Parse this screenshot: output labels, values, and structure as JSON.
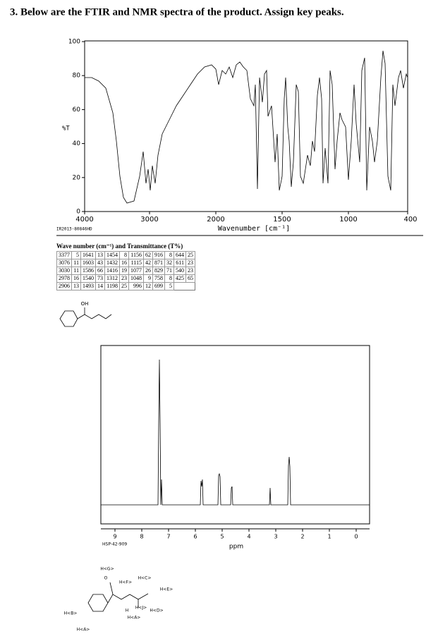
{
  "title": "3. Below are the FTIR and NMR spectra of the product.  Assign key peaks.",
  "ir": {
    "yticks": [
      "100",
      "80",
      "60",
      "40",
      "20",
      "0"
    ],
    "y_label": "%T",
    "xticks": [
      "4000",
      "3000",
      "2000",
      "1500",
      "1000",
      "400"
    ],
    "x_label": "Wavenumber [cm⁻¹]",
    "code": "IR2013-80846HD"
  },
  "table": {
    "caption": "Wave number (cm⁻¹) and Transmittance (T%)",
    "rows": [
      [
        "3377",
        "5",
        "1641",
        "13",
        "1454",
        "8",
        "1156",
        "62",
        "916",
        "8",
        "644",
        "25"
      ],
      [
        "3076",
        "11",
        "1603",
        "43",
        "1432",
        "16",
        "1115",
        "42",
        "871",
        "32",
        "611",
        "23"
      ],
      [
        "3030",
        "11",
        "1586",
        "66",
        "1416",
        "19",
        "1077",
        "26",
        "829",
        "71",
        "540",
        "23"
      ],
      [
        "2978",
        "16",
        "1540",
        "73",
        "1312",
        "23",
        "1048",
        "9",
        "758",
        "8",
        "425",
        "65"
      ],
      [
        "2906",
        "13",
        "1493",
        "14",
        "1198",
        "25",
        "996",
        "12",
        "699",
        "5"
      ]
    ]
  },
  "structure1": {
    "label": "OH"
  },
  "nmr": {
    "xticks": [
      "9",
      "8",
      "7",
      "6",
      "5",
      "4",
      "3",
      "2",
      "1",
      "0"
    ],
    "code": "HSP-42-909",
    "x_label": "ppm"
  },
  "structure2": {
    "labels": [
      "H<G>",
      "O",
      "H<F>",
      "H<C>",
      "H<E>",
      "H",
      "H<J>",
      "H<D>",
      "H<A>",
      "H<B>",
      "H<A>"
    ]
  }
}
